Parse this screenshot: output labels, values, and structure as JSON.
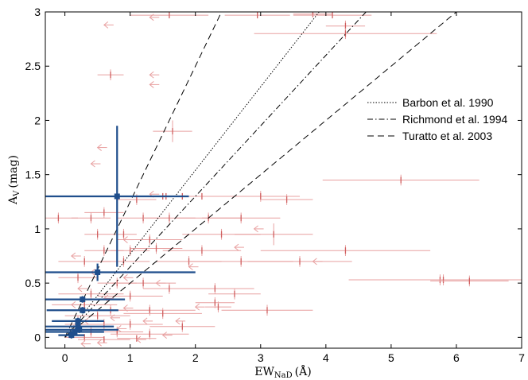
{
  "chart_data": {
    "type": "scatter",
    "xlabel": "EW",
    "xlabel_sub": "NaD",
    "xlabel_unit": "(Å)",
    "ylabel": "A",
    "ylabel_sub": "V",
    "ylabel_unit": "(mag)",
    "xlim": [
      -0.3,
      7
    ],
    "ylim": [
      -0.1,
      3
    ],
    "xticks": [
      0,
      1,
      2,
      3,
      4,
      5,
      6,
      7
    ],
    "yticks": [
      0,
      0.5,
      1,
      1.5,
      2,
      2.5,
      3
    ],
    "xtick_labels": [
      "0",
      "1",
      "2",
      "3",
      "4",
      "5",
      "6",
      "7"
    ],
    "ytick_labels": [
      "0",
      "0.5",
      "1",
      "1.5",
      "2",
      "2.5",
      "3"
    ],
    "legend_position": "top-right",
    "colors": {
      "individual": "#e8a0a0",
      "individual_marker": "#d06060",
      "binned": "#1f4e8c"
    },
    "relations": [
      {
        "name": "Barbon et al. 1990",
        "style": "dotted",
        "slope": 0.77
      },
      {
        "name": "Richmond et al. 1994",
        "style": "dashdot",
        "slope": 0.65
      },
      {
        "name": "Turatto  et al. 2003",
        "style": "dashed",
        "slope": 0.5
      },
      {
        "name": "",
        "style": "dashed",
        "slope": 1.25
      }
    ],
    "individual_points": [
      [
        1.6,
        2.97,
        0.6,
        0.02
      ],
      [
        2.95,
        2.97,
        0.5,
        0.02
      ],
      [
        3.8,
        2.98,
        0.3,
        0.02
      ],
      [
        4.1,
        2.97,
        0.6,
        0.02
      ],
      [
        4.3,
        2.87,
        0.3,
        0.05
      ],
      [
        4.3,
        2.8,
        1.4,
        0.05
      ],
      [
        0.7,
        2.42,
        0.2,
        0.05
      ],
      [
        1.65,
        1.9,
        0.3,
        0.1
      ],
      [
        5.15,
        1.45,
        1.2,
        0.05
      ],
      [
        1.1,
        1.27,
        0.3,
        0.05
      ],
      [
        1.5,
        1.3,
        0.4,
        0.03
      ],
      [
        1.55,
        1.3,
        0.3,
        0.03
      ],
      [
        1.8,
        1.3,
        0.3,
        0.03
      ],
      [
        2.1,
        1.3,
        0.7,
        0.03
      ],
      [
        3.0,
        1.3,
        0.6,
        0.05
      ],
      [
        3.4,
        1.27,
        0.4,
        0.05
      ],
      [
        -0.1,
        1.1,
        0.3,
        0.05
      ],
      [
        0.4,
        1.1,
        0.3,
        0.05
      ],
      [
        0.6,
        1.15,
        0.3,
        0.05
      ],
      [
        1.2,
        1.1,
        0.4,
        0.05
      ],
      [
        1.6,
        1.1,
        0.4,
        0.05
      ],
      [
        2.2,
        1.1,
        0.5,
        0.05
      ],
      [
        2.7,
        1.1,
        0.6,
        0.05
      ],
      [
        0.5,
        0.95,
        0.2,
        0.05
      ],
      [
        0.9,
        0.95,
        0.2,
        0.05
      ],
      [
        1.3,
        0.9,
        0.5,
        0.05
      ],
      [
        2.4,
        0.95,
        0.6,
        0.05
      ],
      [
        3.2,
        0.95,
        0.6,
        0.1
      ],
      [
        0.6,
        0.8,
        0.3,
        0.05
      ],
      [
        1.0,
        0.8,
        0.3,
        0.05
      ],
      [
        1.4,
        0.82,
        0.4,
        0.05
      ],
      [
        2.1,
        0.8,
        0.6,
        0.05
      ],
      [
        4.3,
        0.8,
        1.3,
        0.05
      ],
      [
        0.3,
        0.7,
        0.4,
        0.05
      ],
      [
        0.9,
        0.7,
        0.4,
        0.05
      ],
      [
        1.9,
        0.7,
        0.5,
        0.05
      ],
      [
        2.7,
        0.7,
        0.8,
        0.05
      ],
      [
        3.6,
        0.7,
        0.8,
        0.05
      ],
      [
        5.75,
        0.53,
        1.4,
        0.05
      ],
      [
        5.8,
        0.53,
        0.9,
        0.05
      ],
      [
        6.2,
        0.52,
        0.6,
        0.05
      ],
      [
        0.2,
        0.55,
        0.3,
        0.05
      ],
      [
        0.8,
        0.5,
        0.3,
        0.05
      ],
      [
        1.2,
        0.5,
        0.5,
        0.05
      ],
      [
        1.6,
        0.45,
        0.4,
        0.05
      ],
      [
        2.3,
        0.45,
        0.6,
        0.05
      ],
      [
        0.4,
        0.4,
        0.5,
        0.05
      ],
      [
        1.0,
        0.38,
        0.5,
        0.05
      ],
      [
        2.6,
        0.4,
        0.4,
        0.05
      ],
      [
        2.3,
        0.32,
        0.3,
        0.05
      ],
      [
        2.35,
        0.28,
        0.2,
        0.05
      ],
      [
        0.3,
        0.3,
        0.5,
        0.05
      ],
      [
        0.7,
        0.25,
        0.6,
        0.05
      ],
      [
        1.3,
        0.25,
        0.7,
        0.05
      ],
      [
        0.5,
        0.2,
        0.5,
        0.05
      ],
      [
        1.5,
        0.22,
        0.6,
        0.05
      ],
      [
        3.1,
        0.25,
        0.7,
        0.05
      ],
      [
        0.2,
        0.15,
        0.4,
        0.05
      ],
      [
        0.6,
        0.12,
        0.6,
        0.05
      ],
      [
        1.0,
        0.12,
        0.5,
        0.05
      ],
      [
        1.8,
        0.1,
        0.5,
        0.05
      ],
      [
        0.4,
        0.05,
        0.5,
        0.05
      ],
      [
        0.8,
        0.05,
        0.4,
        0.05
      ],
      [
        1.3,
        0.03,
        0.6,
        0.05
      ],
      [
        0.1,
        0.02,
        0.2,
        0.03
      ],
      [
        0.3,
        0.0,
        0.3,
        0.03
      ],
      [
        0.6,
        -0.02,
        0.4,
        0.03
      ],
      [
        1.1,
        -0.01,
        0.3,
        0.03
      ]
    ],
    "upper_limits": [
      [
        0.6,
        2.88
      ],
      [
        1.3,
        2.95
      ],
      [
        1.3,
        2.42
      ],
      [
        1.3,
        2.33
      ],
      [
        0.5,
        1.75
      ],
      [
        1.3,
        1.32
      ],
      [
        0.4,
        1.6
      ],
      [
        2.9,
        1.0
      ],
      [
        0.9,
        0.9
      ],
      [
        2.6,
        0.83
      ],
      [
        1.9,
        0.65
      ],
      [
        3.8,
        0.7
      ],
      [
        0.1,
        0.75
      ],
      [
        0.4,
        0.6
      ],
      [
        0.2,
        0.45
      ],
      [
        0.9,
        0.55
      ],
      [
        0.6,
        0.36
      ],
      [
        0.1,
        0.3
      ],
      [
        0.7,
        0.18
      ],
      [
        1.4,
        0.5
      ],
      [
        1.2,
        0.15
      ],
      [
        0.3,
        0.15
      ],
      [
        0.8,
        0.08
      ],
      [
        0.5,
        -0.05
      ],
      [
        1.1,
        -0.02
      ],
      [
        1.5,
        0.02
      ],
      [
        0.25,
        -0.06
      ],
      [
        0.9,
        0.27
      ],
      [
        2.0,
        0.28
      ],
      [
        1.7,
        0.15
      ]
    ],
    "binned_points": [
      [
        0.8,
        1.3,
        1.1,
        0.65
      ],
      [
        0.5,
        0.6,
        1.5,
        0.08
      ],
      [
        0.27,
        0.35,
        0.65,
        0.03
      ],
      [
        0.27,
        0.25,
        0.55,
        0.03
      ],
      [
        0.2,
        0.15,
        0.4,
        0.03
      ],
      [
        0.2,
        0.1,
        0.55,
        0.03
      ],
      [
        0.22,
        0.07,
        0.6,
        0.03
      ],
      [
        0.15,
        0.05,
        0.45,
        0.03
      ],
      [
        0.1,
        0.02,
        0.2,
        0.03
      ]
    ]
  }
}
